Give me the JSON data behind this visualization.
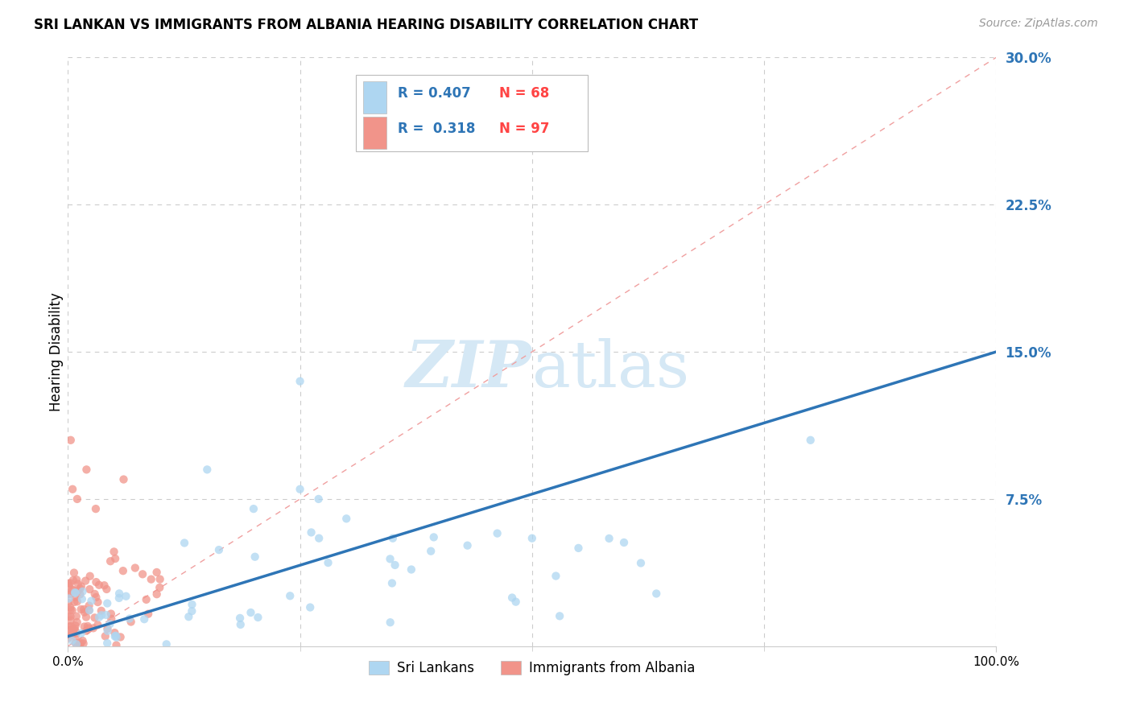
{
  "title": "SRI LANKAN VS IMMIGRANTS FROM ALBANIA HEARING DISABILITY CORRELATION CHART",
  "source": "Source: ZipAtlas.com",
  "ylabel": "Hearing Disability",
  "xlim": [
    0,
    100
  ],
  "ylim": [
    0,
    30
  ],
  "sri_lankan_color": "#AED6F1",
  "sri_lankan_edge": "#85C1E9",
  "albania_color": "#F1948A",
  "albania_edge": "#E74C6E",
  "regression_line_color": "#2E75B6",
  "diagonal_line_color": "#F0A0A0",
  "legend_R1": "0.407",
  "legend_N1": "68",
  "legend_R2": "0.318",
  "legend_N2": "97",
  "legend_color": "#2E75B6",
  "legend_N_color": "#FF4444",
  "watermark_color": "#D5E8F5",
  "sri_lankans_label": "Sri Lankans",
  "albania_label": "Immigrants from Albania",
  "reg_line_x0": 0,
  "reg_line_x1": 100,
  "reg_line_y0": 0.5,
  "reg_line_y1": 15.0,
  "diag_line_x0": 0,
  "diag_line_x1": 100,
  "diag_line_y0": 0,
  "diag_line_y1": 30
}
